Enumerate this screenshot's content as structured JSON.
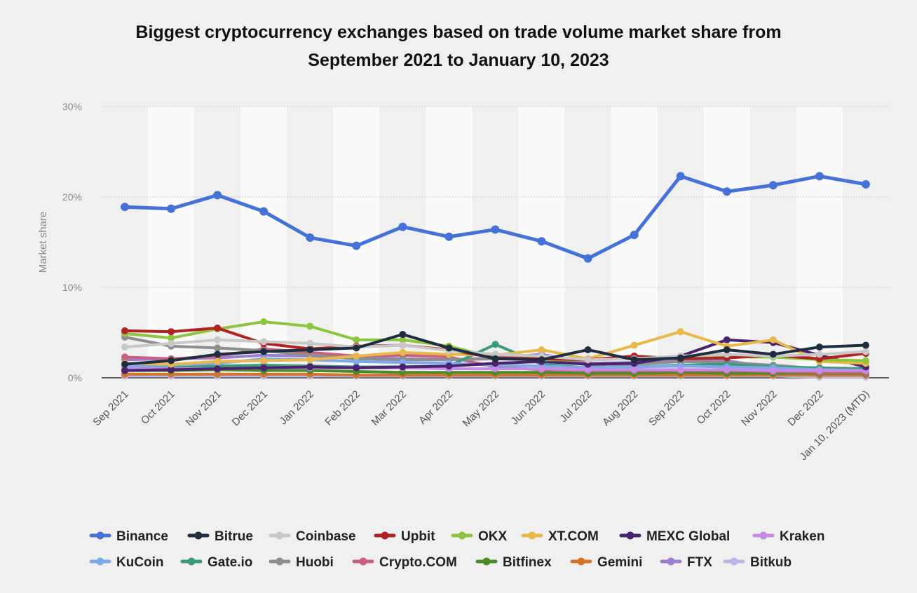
{
  "chart_data": {
    "type": "line",
    "title_line1": "Biggest cryptocurrency exchanges based on trade volume market share from",
    "title_line2": "September 2021 to January 10, 2023",
    "ylabel": "Market share",
    "xlabel": "",
    "ylim": [
      0,
      30
    ],
    "yticks": [
      0,
      10,
      20,
      30
    ],
    "ytick_labels": [
      "0%",
      "10%",
      "20%",
      "30%"
    ],
    "grid": true,
    "legend_position": "bottom",
    "categories": [
      "Sep 2021",
      "Oct 2021",
      "Nov 2021",
      "Dec 2021",
      "Jan 2022",
      "Feb 2022",
      "Mar 2022",
      "Apr 2022",
      "May 2022",
      "Jun 2022",
      "Jul 2022",
      "Aug 2022",
      "Sep 2022",
      "Oct 2022",
      "Nov 2022",
      "Dec 2022",
      "Jan 10, 2023 (MTD)"
    ],
    "series": [
      {
        "name": "Binance",
        "color": "#4472d9",
        "values": [
          18.9,
          18.7,
          20.2,
          18.4,
          15.5,
          14.6,
          16.7,
          15.6,
          16.4,
          15.1,
          13.2,
          15.8,
          22.3,
          20.6,
          21.3,
          22.3,
          21.4
        ]
      },
      {
        "name": "Bitrue",
        "color": "#1e2e40",
        "values": [
          1.5,
          1.9,
          2.6,
          2.9,
          3.1,
          3.3,
          4.8,
          3.3,
          2.1,
          2.0,
          3.1,
          2.0,
          2.2,
          3.1,
          2.6,
          3.4,
          3.6
        ]
      },
      {
        "name": "Coinbase",
        "color": "#c8c8c8",
        "values": [
          3.4,
          3.8,
          4.2,
          4.0,
          3.8,
          3.4,
          3.6,
          3.0,
          2.6,
          2.4,
          2.0,
          2.1,
          2.4,
          2.6,
          2.4,
          2.6,
          2.9
        ]
      },
      {
        "name": "Upbit",
        "color": "#b22222",
        "values": [
          5.2,
          5.1,
          5.5,
          3.8,
          3.2,
          3.5,
          3.6,
          3.1,
          2.2,
          2.1,
          2.0,
          2.4,
          2.1,
          2.2,
          2.5,
          2.1,
          2.7
        ]
      },
      {
        "name": "OKX",
        "color": "#8cc63f",
        "values": [
          4.9,
          4.4,
          5.4,
          6.2,
          5.7,
          4.2,
          4.2,
          3.5,
          2.2,
          2.0,
          2.0,
          2.1,
          2.4,
          2.3,
          2.3,
          2.0,
          1.9
        ]
      },
      {
        "name": "XT.COM",
        "color": "#e8b94a",
        "values": [
          1.6,
          1.5,
          1.8,
          1.9,
          2.0,
          2.4,
          2.8,
          2.6,
          2.5,
          3.1,
          2.1,
          3.6,
          5.1,
          3.5,
          4.2,
          1.8,
          1.6
        ]
      },
      {
        "name": "MEXC Global",
        "color": "#4a2370",
        "values": [
          0.8,
          0.9,
          1.0,
          1.1,
          1.2,
          1.1,
          1.2,
          1.3,
          1.6,
          1.8,
          1.5,
          1.6,
          2.4,
          4.2,
          3.9,
          2.5,
          1.2
        ]
      },
      {
        "name": "Kraken",
        "color": "#c58be8",
        "values": [
          1.0,
          1.0,
          1.0,
          1.1,
          1.1,
          1.1,
          1.1,
          1.0,
          1.0,
          1.0,
          0.9,
          0.9,
          0.9,
          0.9,
          0.8,
          0.8,
          0.8
        ]
      },
      {
        "name": "KuCoin",
        "color": "#7fa8e8",
        "values": [
          1.2,
          1.4,
          1.6,
          2.1,
          2.0,
          1.8,
          1.7,
          1.6,
          1.4,
          1.3,
          1.1,
          1.2,
          1.3,
          1.2,
          1.1,
          0.9,
          0.8
        ]
      },
      {
        "name": "Gate.io",
        "color": "#3a9a7a",
        "values": [
          1.1,
          1.2,
          1.3,
          1.4,
          1.3,
          1.2,
          1.2,
          1.3,
          3.7,
          1.5,
          1.1,
          1.2,
          1.4,
          1.5,
          1.2,
          1.1,
          1.0
        ]
      },
      {
        "name": "Huobi",
        "color": "#8e8e8e",
        "values": [
          4.5,
          3.5,
          3.3,
          3.0,
          2.5,
          2.1,
          2.0,
          2.0,
          2.1,
          2.3,
          1.4,
          1.5,
          1.8,
          1.7,
          1.4,
          1.0,
          0.9
        ]
      },
      {
        "name": "Crypto.COM",
        "color": "#c8607e",
        "values": [
          2.3,
          2.1,
          2.4,
          3.2,
          2.8,
          2.4,
          2.5,
          2.3,
          1.2,
          0.9,
          0.8,
          0.8,
          0.8,
          0.8,
          0.7,
          0.6,
          0.6
        ]
      },
      {
        "name": "Bitfinex",
        "color": "#4a8c2a",
        "values": [
          0.8,
          0.8,
          0.9,
          0.8,
          0.8,
          0.7,
          0.6,
          0.6,
          0.6,
          0.6,
          0.5,
          0.5,
          0.6,
          0.5,
          0.5,
          0.5,
          0.5
        ]
      },
      {
        "name": "Gemini",
        "color": "#d4732b",
        "values": [
          0.4,
          0.4,
          0.4,
          0.4,
          0.4,
          0.3,
          0.3,
          0.3,
          0.3,
          0.3,
          0.3,
          0.3,
          0.3,
          0.3,
          0.3,
          0.3,
          0.3
        ]
      },
      {
        "name": "FTX",
        "color": "#9b7fd1",
        "values": [
          2.0,
          2.1,
          2.2,
          2.5,
          2.4,
          2.3,
          2.1,
          2.0,
          2.2,
          2.6,
          1.6,
          1.7,
          2.0,
          1.9,
          1.1,
          0.3,
          0.3
        ]
      },
      {
        "name": "Bitkub",
        "color": "#b9b6e8",
        "values": [
          0.2,
          0.2,
          0.2,
          0.2,
          0.2,
          0.2,
          0.2,
          0.2,
          0.2,
          0.2,
          0.2,
          0.2,
          0.2,
          0.2,
          0.2,
          0.1,
          0.1
        ]
      }
    ]
  }
}
